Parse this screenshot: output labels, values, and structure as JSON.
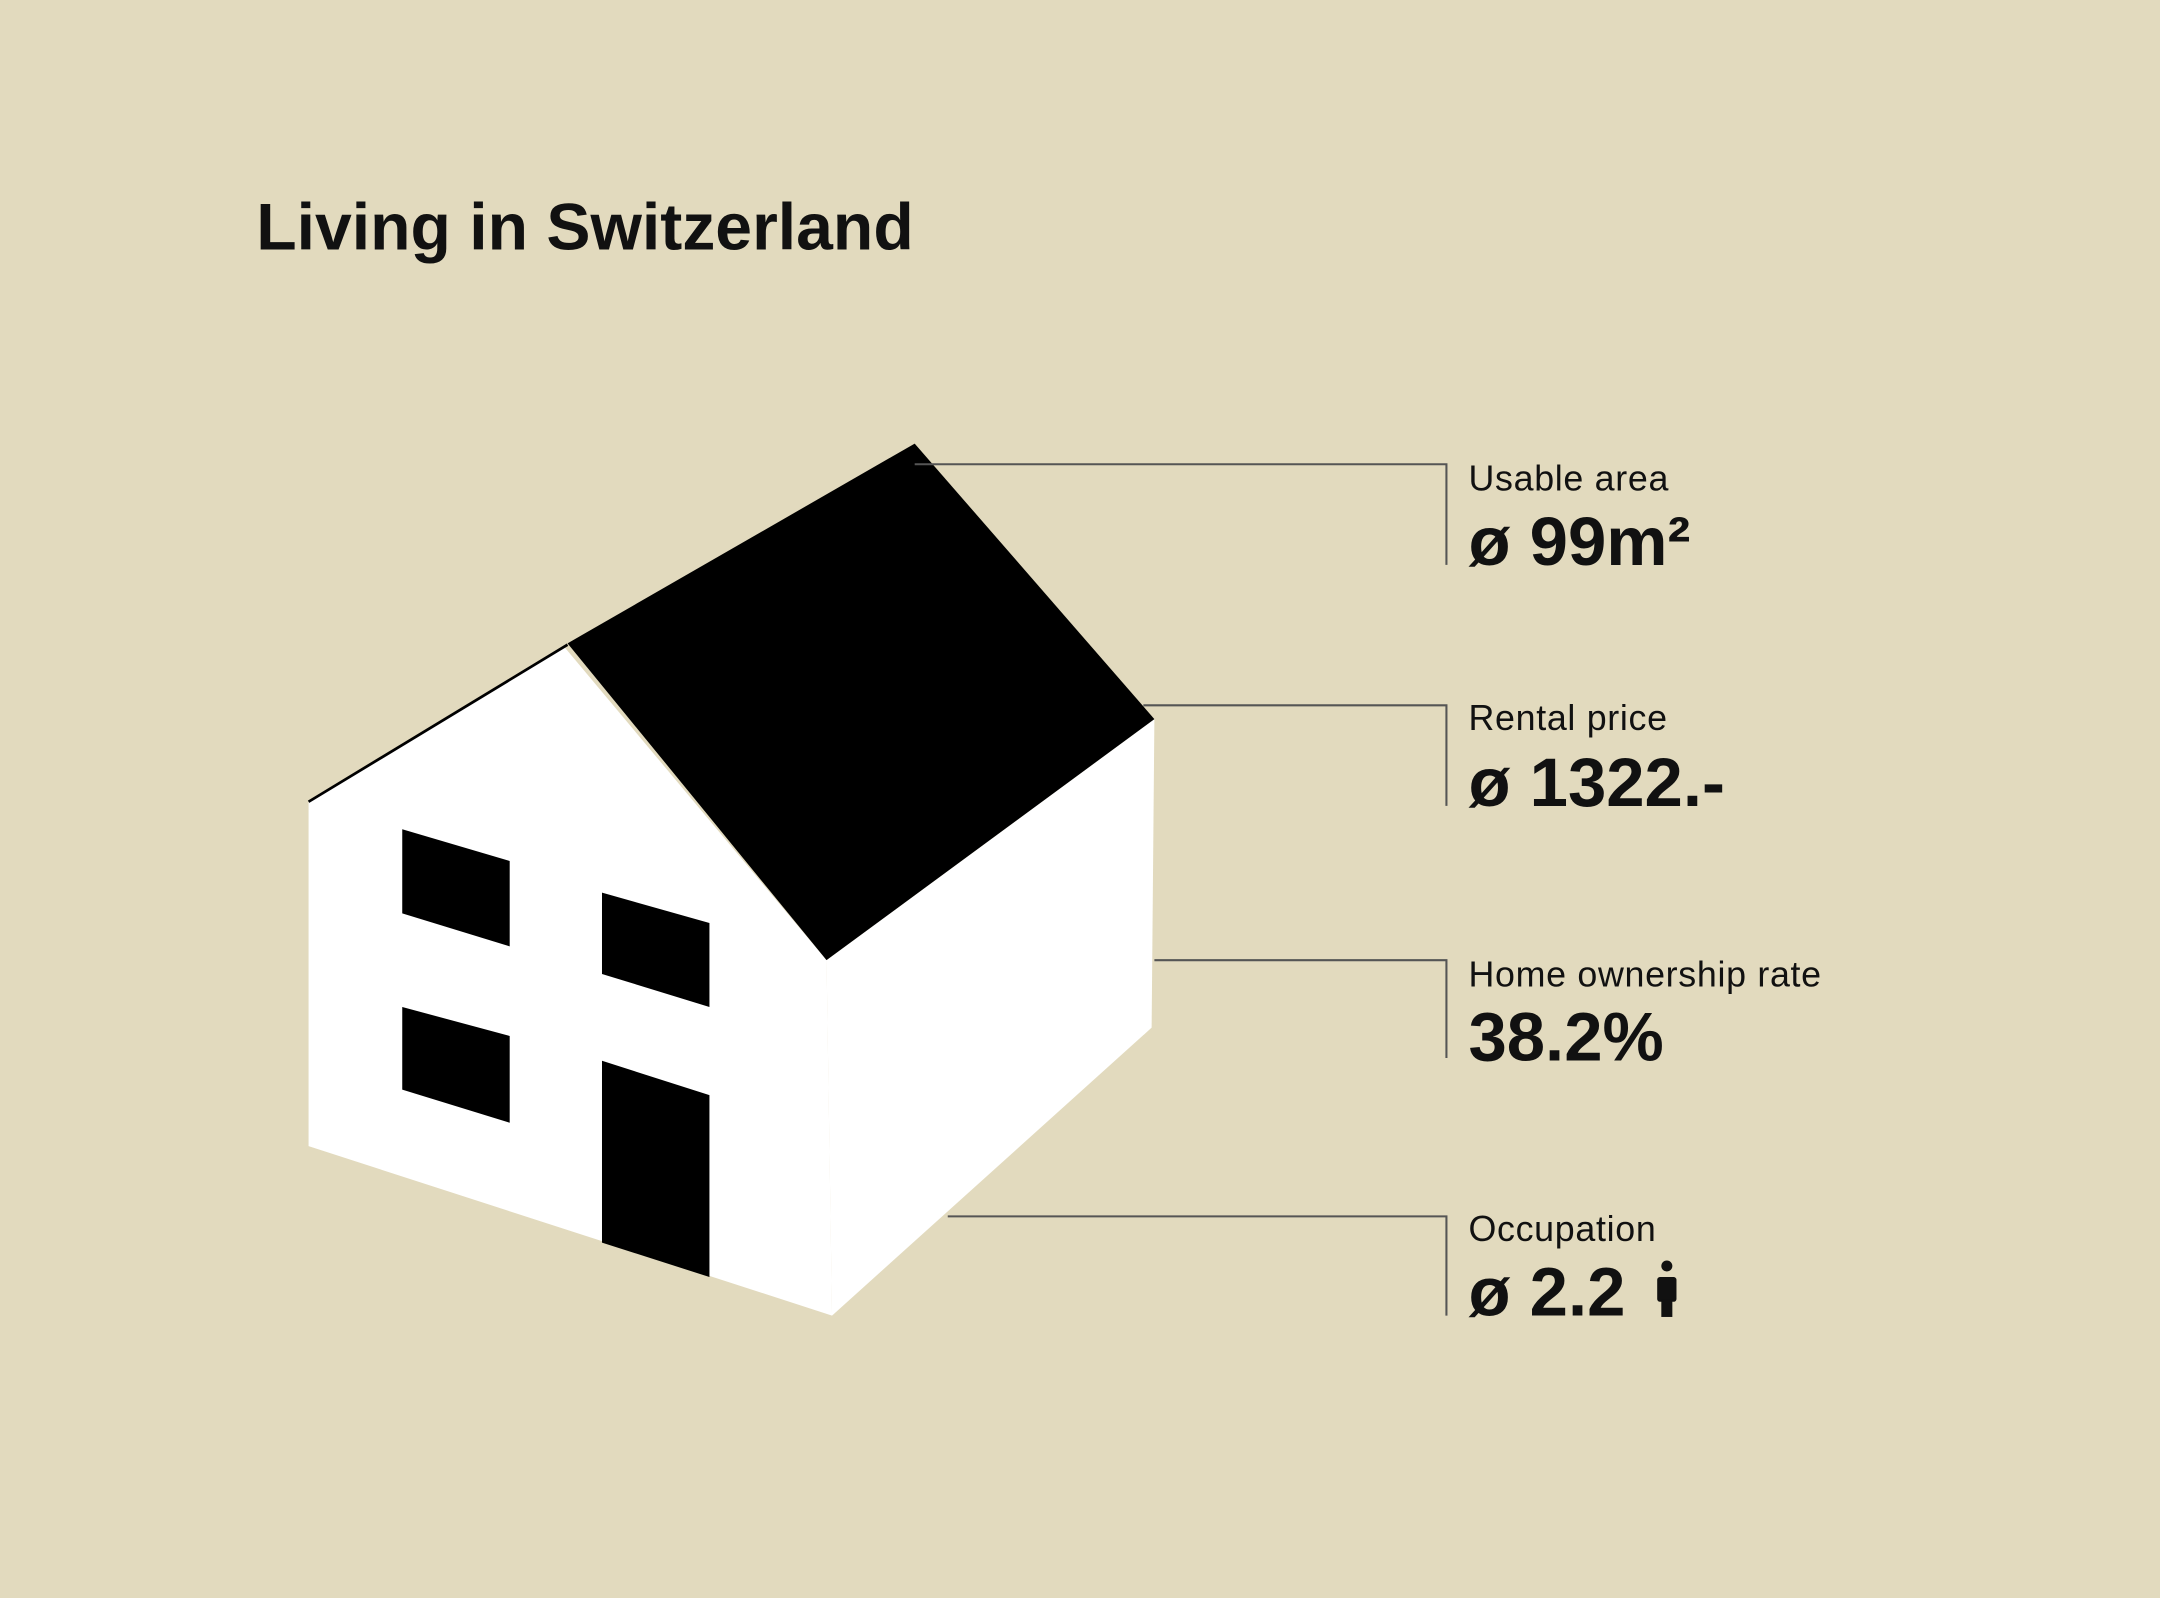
{
  "title": "Living in Switzerland",
  "stats": [
    {
      "label": "Usable area",
      "value": "ø 99m²"
    },
    {
      "label": "Rental price",
      "value": "ø 1322.-"
    },
    {
      "label": "Home ownership rate",
      "value": "38.2%"
    },
    {
      "label": "Occupation",
      "value": "ø 2.2"
    }
  ]
}
